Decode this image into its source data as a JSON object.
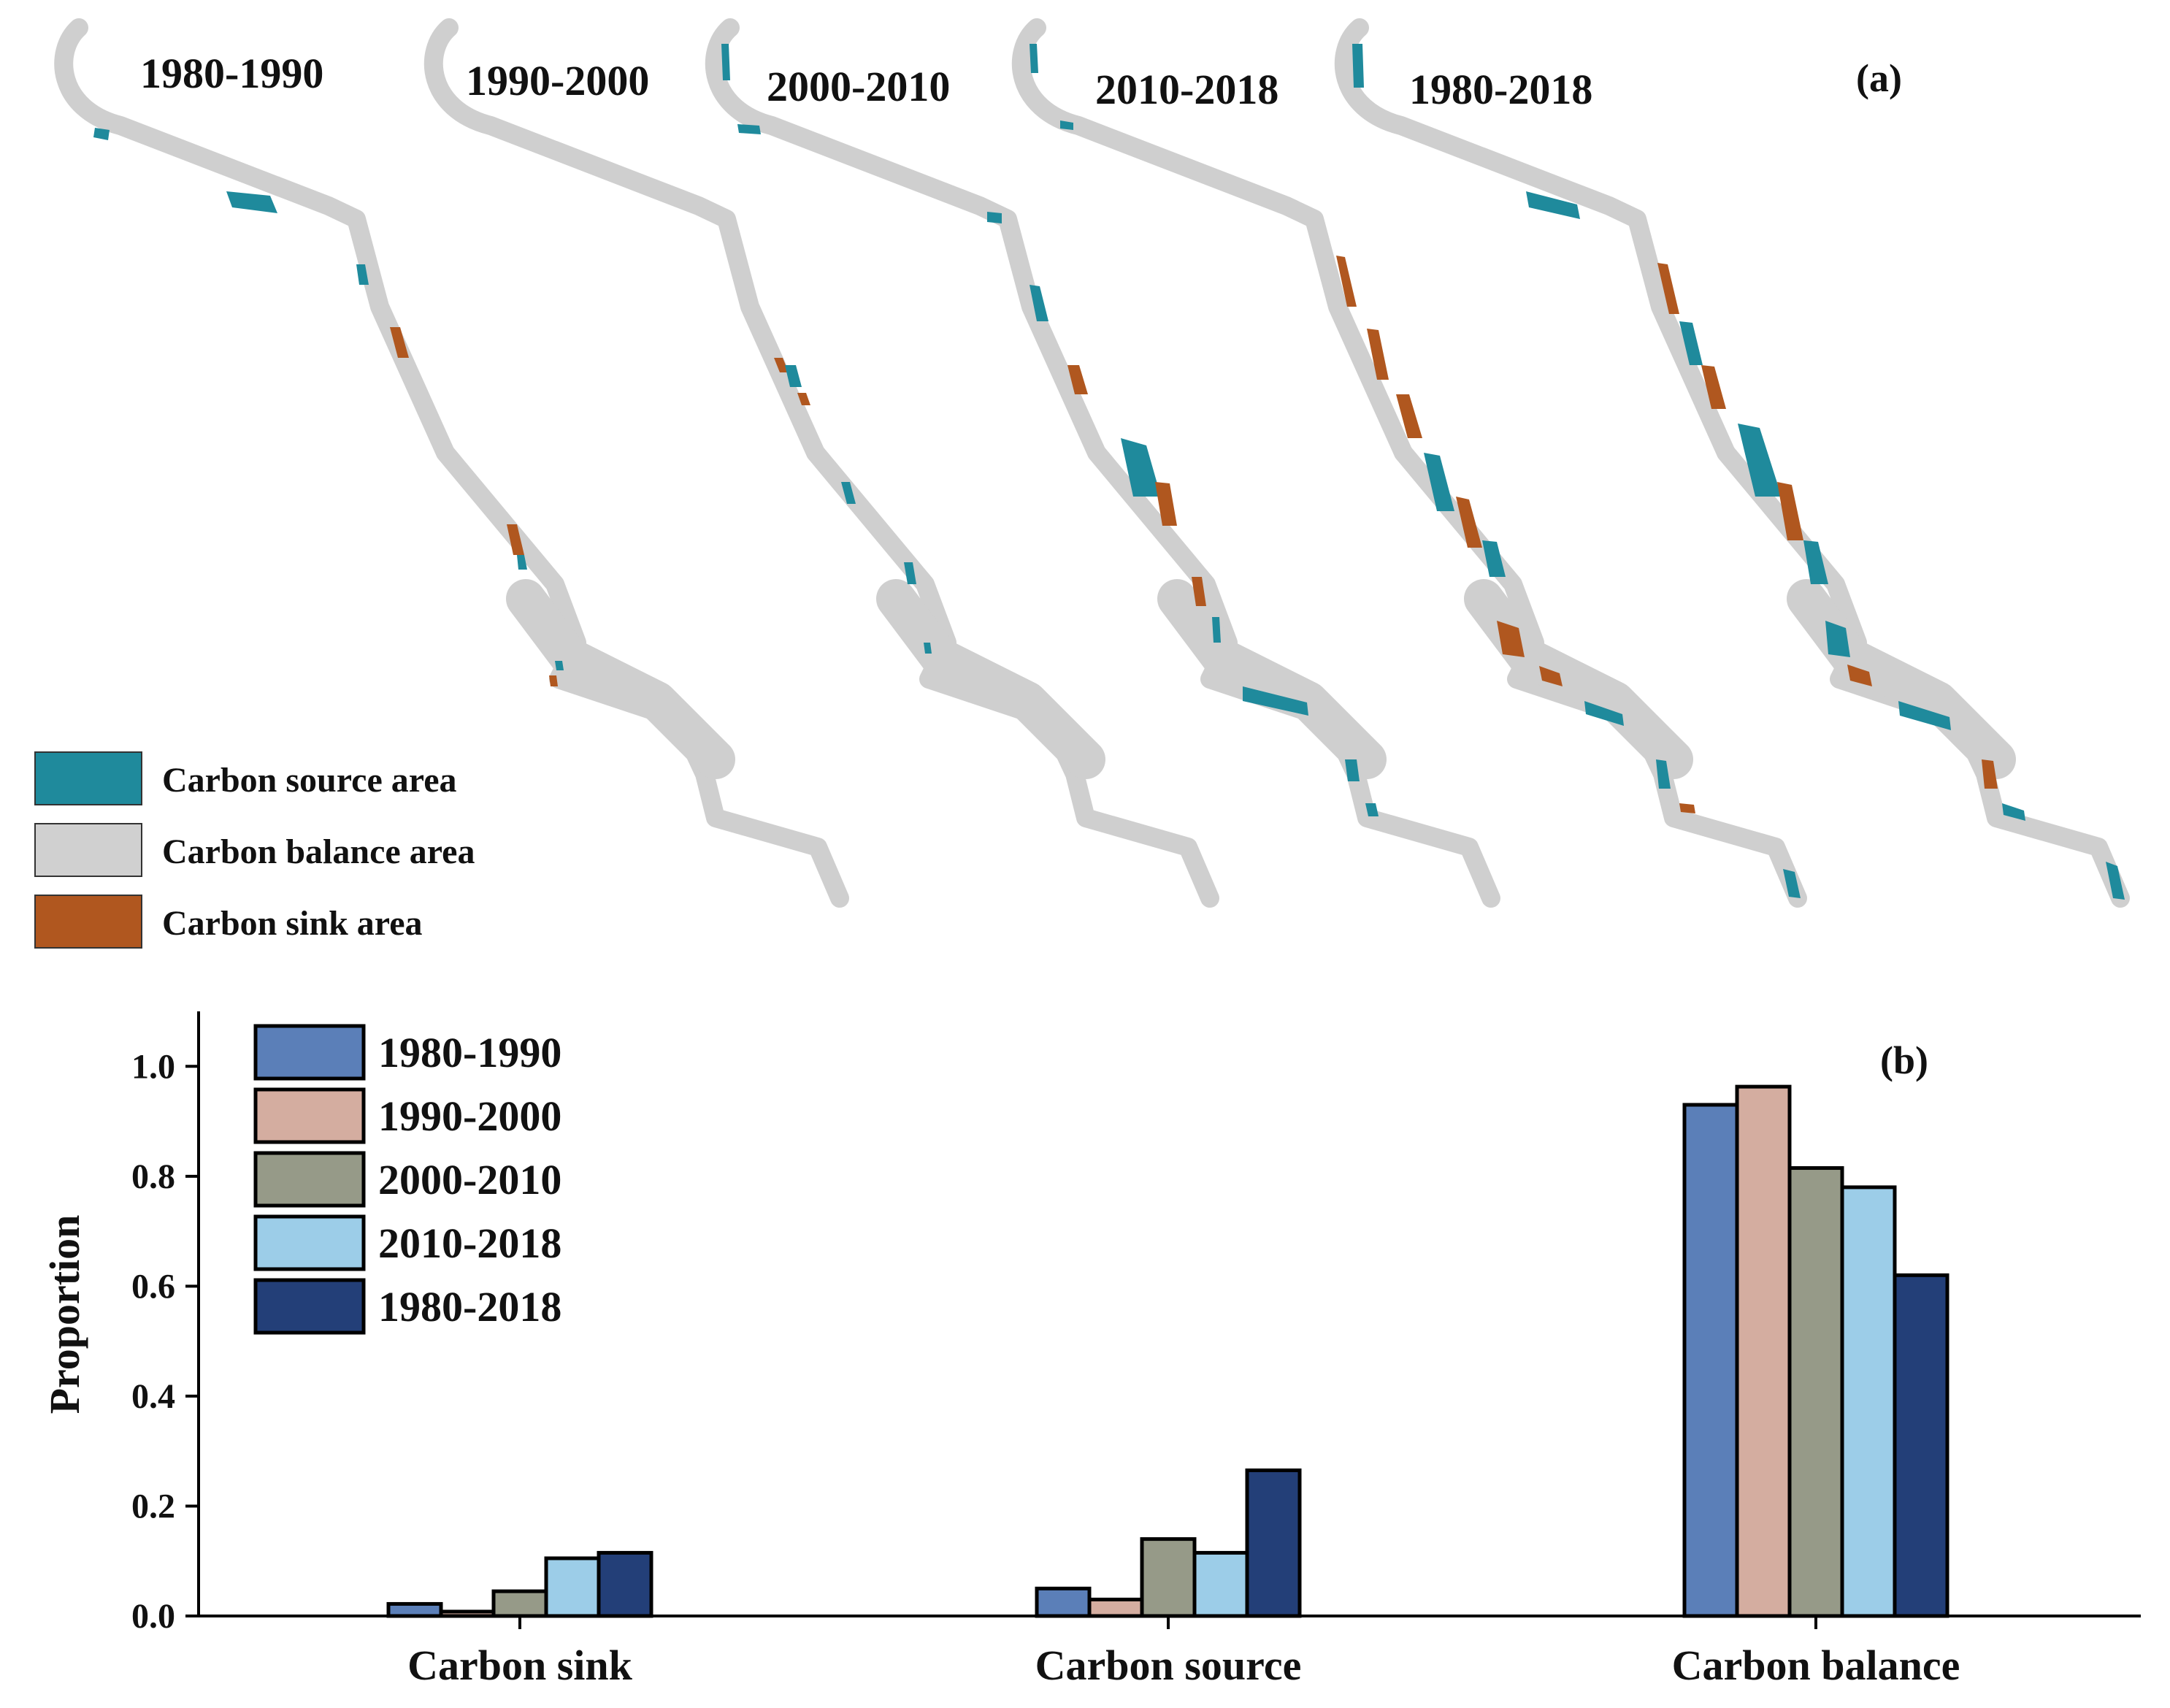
{
  "panel_a": {
    "tag": "(a)",
    "periods": [
      "1980-1990",
      "1990-2000",
      "2000-2010",
      "2010-2018",
      "1980-2018"
    ],
    "legend": [
      {
        "label": "Carbon source area",
        "color": "#1f8a9c"
      },
      {
        "label": "Carbon balance area",
        "color": "#d0d0d0"
      },
      {
        "label": "Carbon sink area",
        "color": "#b0571f"
      }
    ]
  },
  "panel_b": {
    "tag": "(b)"
  },
  "chart_data": {
    "type": "bar",
    "title": "",
    "xlabel": "",
    "ylabel": "Proportion",
    "ylim": [
      0,
      1.1
    ],
    "yticks": [
      "0.0",
      "0.2",
      "0.4",
      "0.6",
      "0.8",
      "1.0"
    ],
    "categories": [
      "Carbon sink",
      "Carbon source",
      "Carbon balance"
    ],
    "series": [
      {
        "name": "1980-1990",
        "color": "#5b7fb8",
        "values": [
          0.022,
          0.05,
          0.93
        ]
      },
      {
        "name": "1990-2000",
        "color": "#d4ada0",
        "values": [
          0.008,
          0.03,
          0.963
        ]
      },
      {
        "name": "2000-2010",
        "color": "#969a88",
        "values": [
          0.045,
          0.14,
          0.815
        ]
      },
      {
        "name": "2010-2018",
        "color": "#9ccde8",
        "values": [
          0.105,
          0.115,
          0.78
        ]
      },
      {
        "name": "1980-2018",
        "color": "#233f78",
        "values": [
          0.115,
          0.265,
          0.62
        ]
      }
    ],
    "legend_position": "top-left"
  }
}
